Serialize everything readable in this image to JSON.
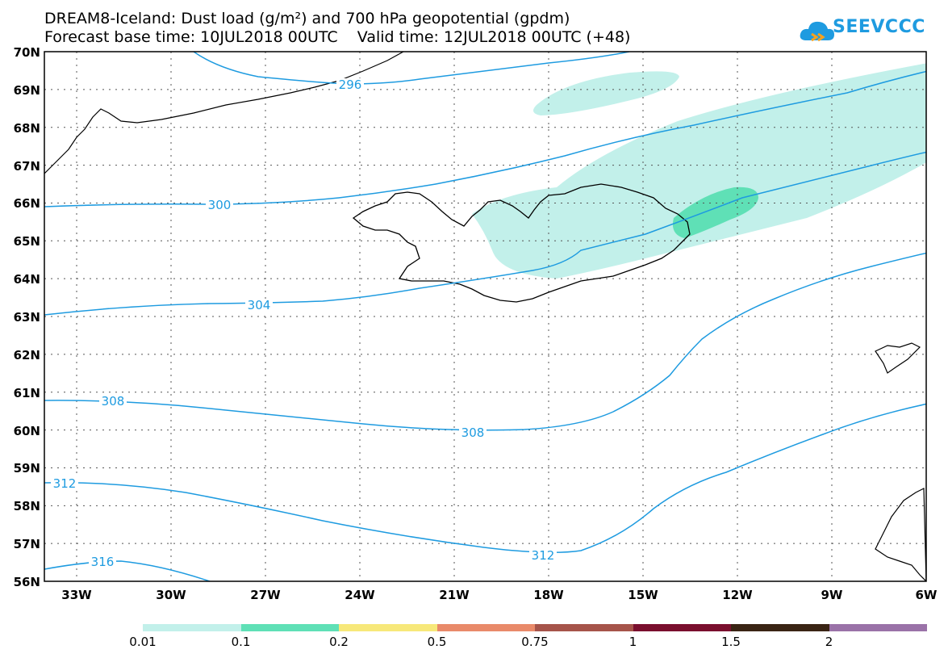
{
  "title_line1": "DREAM8-Iceland: Dust load (g/m²) and 700 hPa geopotential (gpdm)",
  "title_line2": "Forecast base time: 10JUL2018 00UTC    Valid time: 12JUL2018 00UTC (+48)",
  "logo": {
    "text": "SEEVCCC",
    "icon": "cloud-logo-icon",
    "color": "#1e9be0"
  },
  "lat_labels": [
    "70N",
    "69N",
    "68N",
    "67N",
    "66N",
    "65N",
    "64N",
    "63N",
    "62N",
    "61N",
    "60N",
    "59N",
    "58N",
    "57N",
    "56N"
  ],
  "lon_labels": [
    "33W",
    "30W",
    "27W",
    "24W",
    "21W",
    "18W",
    "15W",
    "12W",
    "9W",
    "6W"
  ],
  "contour_labels": [
    "296",
    "300",
    "304",
    "308",
    "308",
    "312",
    "312",
    "316"
  ],
  "colorbar": {
    "labels": [
      "0.01",
      "0.1",
      "0.2",
      "0.5",
      "0.75",
      "1",
      "1.5",
      "2"
    ],
    "colors": [
      "#c2f0ea",
      "#5fe0b6",
      "#f7e87a",
      "#e98a6a",
      "#a6544a",
      "#7a0f2e",
      "#3a2414",
      "#9a72a8"
    ]
  },
  "colors": {
    "contour": "#1e9be0",
    "dust_low": "#c2f0ea",
    "dust_mid": "#5fe0b6",
    "coast": "#000000"
  }
}
